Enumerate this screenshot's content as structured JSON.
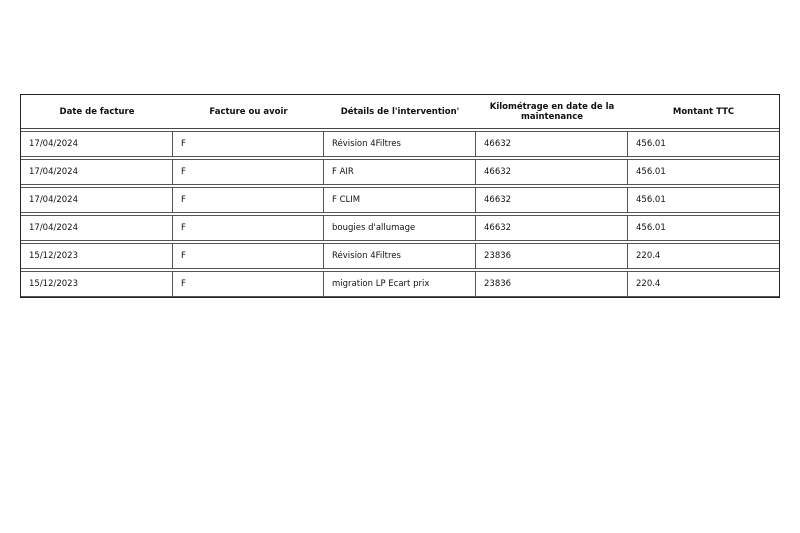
{
  "table": {
    "headers": [
      "Date de facture",
      "Facture ou avoir",
      "Détails de l'intervention'",
      "Kilométrage en date de la maintenance",
      "Montant TTC"
    ],
    "rows": [
      [
        "17/04/2024",
        "F",
        "Révision 4Filtres",
        "46632",
        "456.01"
      ],
      [
        "17/04/2024",
        "F",
        "F AIR",
        "46632",
        "456.01"
      ],
      [
        "17/04/2024",
        "F",
        "F CLIM",
        "46632",
        "456.01"
      ],
      [
        "17/04/2024",
        "F",
        "bougies d'allumage",
        "46632",
        "456.01"
      ],
      [
        "15/12/2023",
        "F",
        "Révision 4Filtres",
        "23836",
        "220.4"
      ],
      [
        "15/12/2023",
        "F",
        "migration LP Ecart prix",
        "23836",
        "220.4"
      ]
    ]
  }
}
